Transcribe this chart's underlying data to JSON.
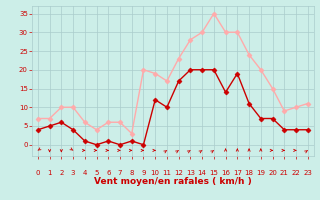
{
  "hours": [
    0,
    1,
    2,
    3,
    4,
    5,
    6,
    7,
    8,
    9,
    10,
    11,
    12,
    13,
    14,
    15,
    16,
    17,
    18,
    19,
    20,
    21,
    22,
    23
  ],
  "vent_moyen": [
    4,
    5,
    6,
    4,
    1,
    0,
    1,
    0,
    1,
    0,
    12,
    10,
    17,
    20,
    20,
    20,
    14,
    19,
    11,
    7,
    7,
    4,
    4,
    4
  ],
  "rafales": [
    7,
    7,
    10,
    10,
    6,
    4,
    6,
    6,
    3,
    20,
    19,
    17,
    23,
    28,
    30,
    35,
    30,
    30,
    24,
    20,
    15,
    9,
    10,
    11
  ],
  "color_moyen": "#cc0000",
  "color_rafales": "#ffaaaa",
  "bg_color": "#cceee8",
  "grid_color": "#aacccc",
  "xlabel": "Vent moyen/en rafales ( km/h )",
  "xlabel_color": "#cc0000",
  "yticks": [
    0,
    5,
    10,
    15,
    20,
    25,
    30,
    35
  ],
  "ylim": [
    -3,
    37
  ],
  "xlim": [
    -0.5,
    23.5
  ],
  "tick_color": "#cc0000",
  "markersize": 2.5,
  "linewidth": 1.0
}
